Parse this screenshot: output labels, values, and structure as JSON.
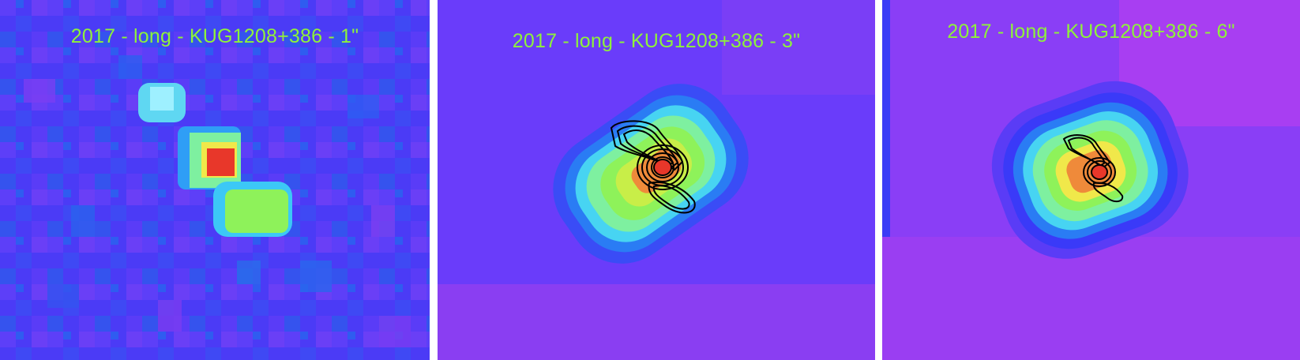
{
  "panels": [
    {
      "caption": "2017 - long - KUG1208+386 - 1\"",
      "colormap": "rainbow",
      "contours": false
    },
    {
      "caption": "2017 - long - KUG1208+386 - 3\"",
      "colormap": "rainbow",
      "contours": true
    },
    {
      "caption": "2017 - long - KUG1208+386 - 6\"",
      "colormap": "rainbow",
      "contours": true
    }
  ],
  "colors": {
    "caption": "#8ef23a",
    "background": "#6a3cff",
    "peak": "#e83a2a",
    "contour": "#000000",
    "divider": "#ffffff"
  }
}
